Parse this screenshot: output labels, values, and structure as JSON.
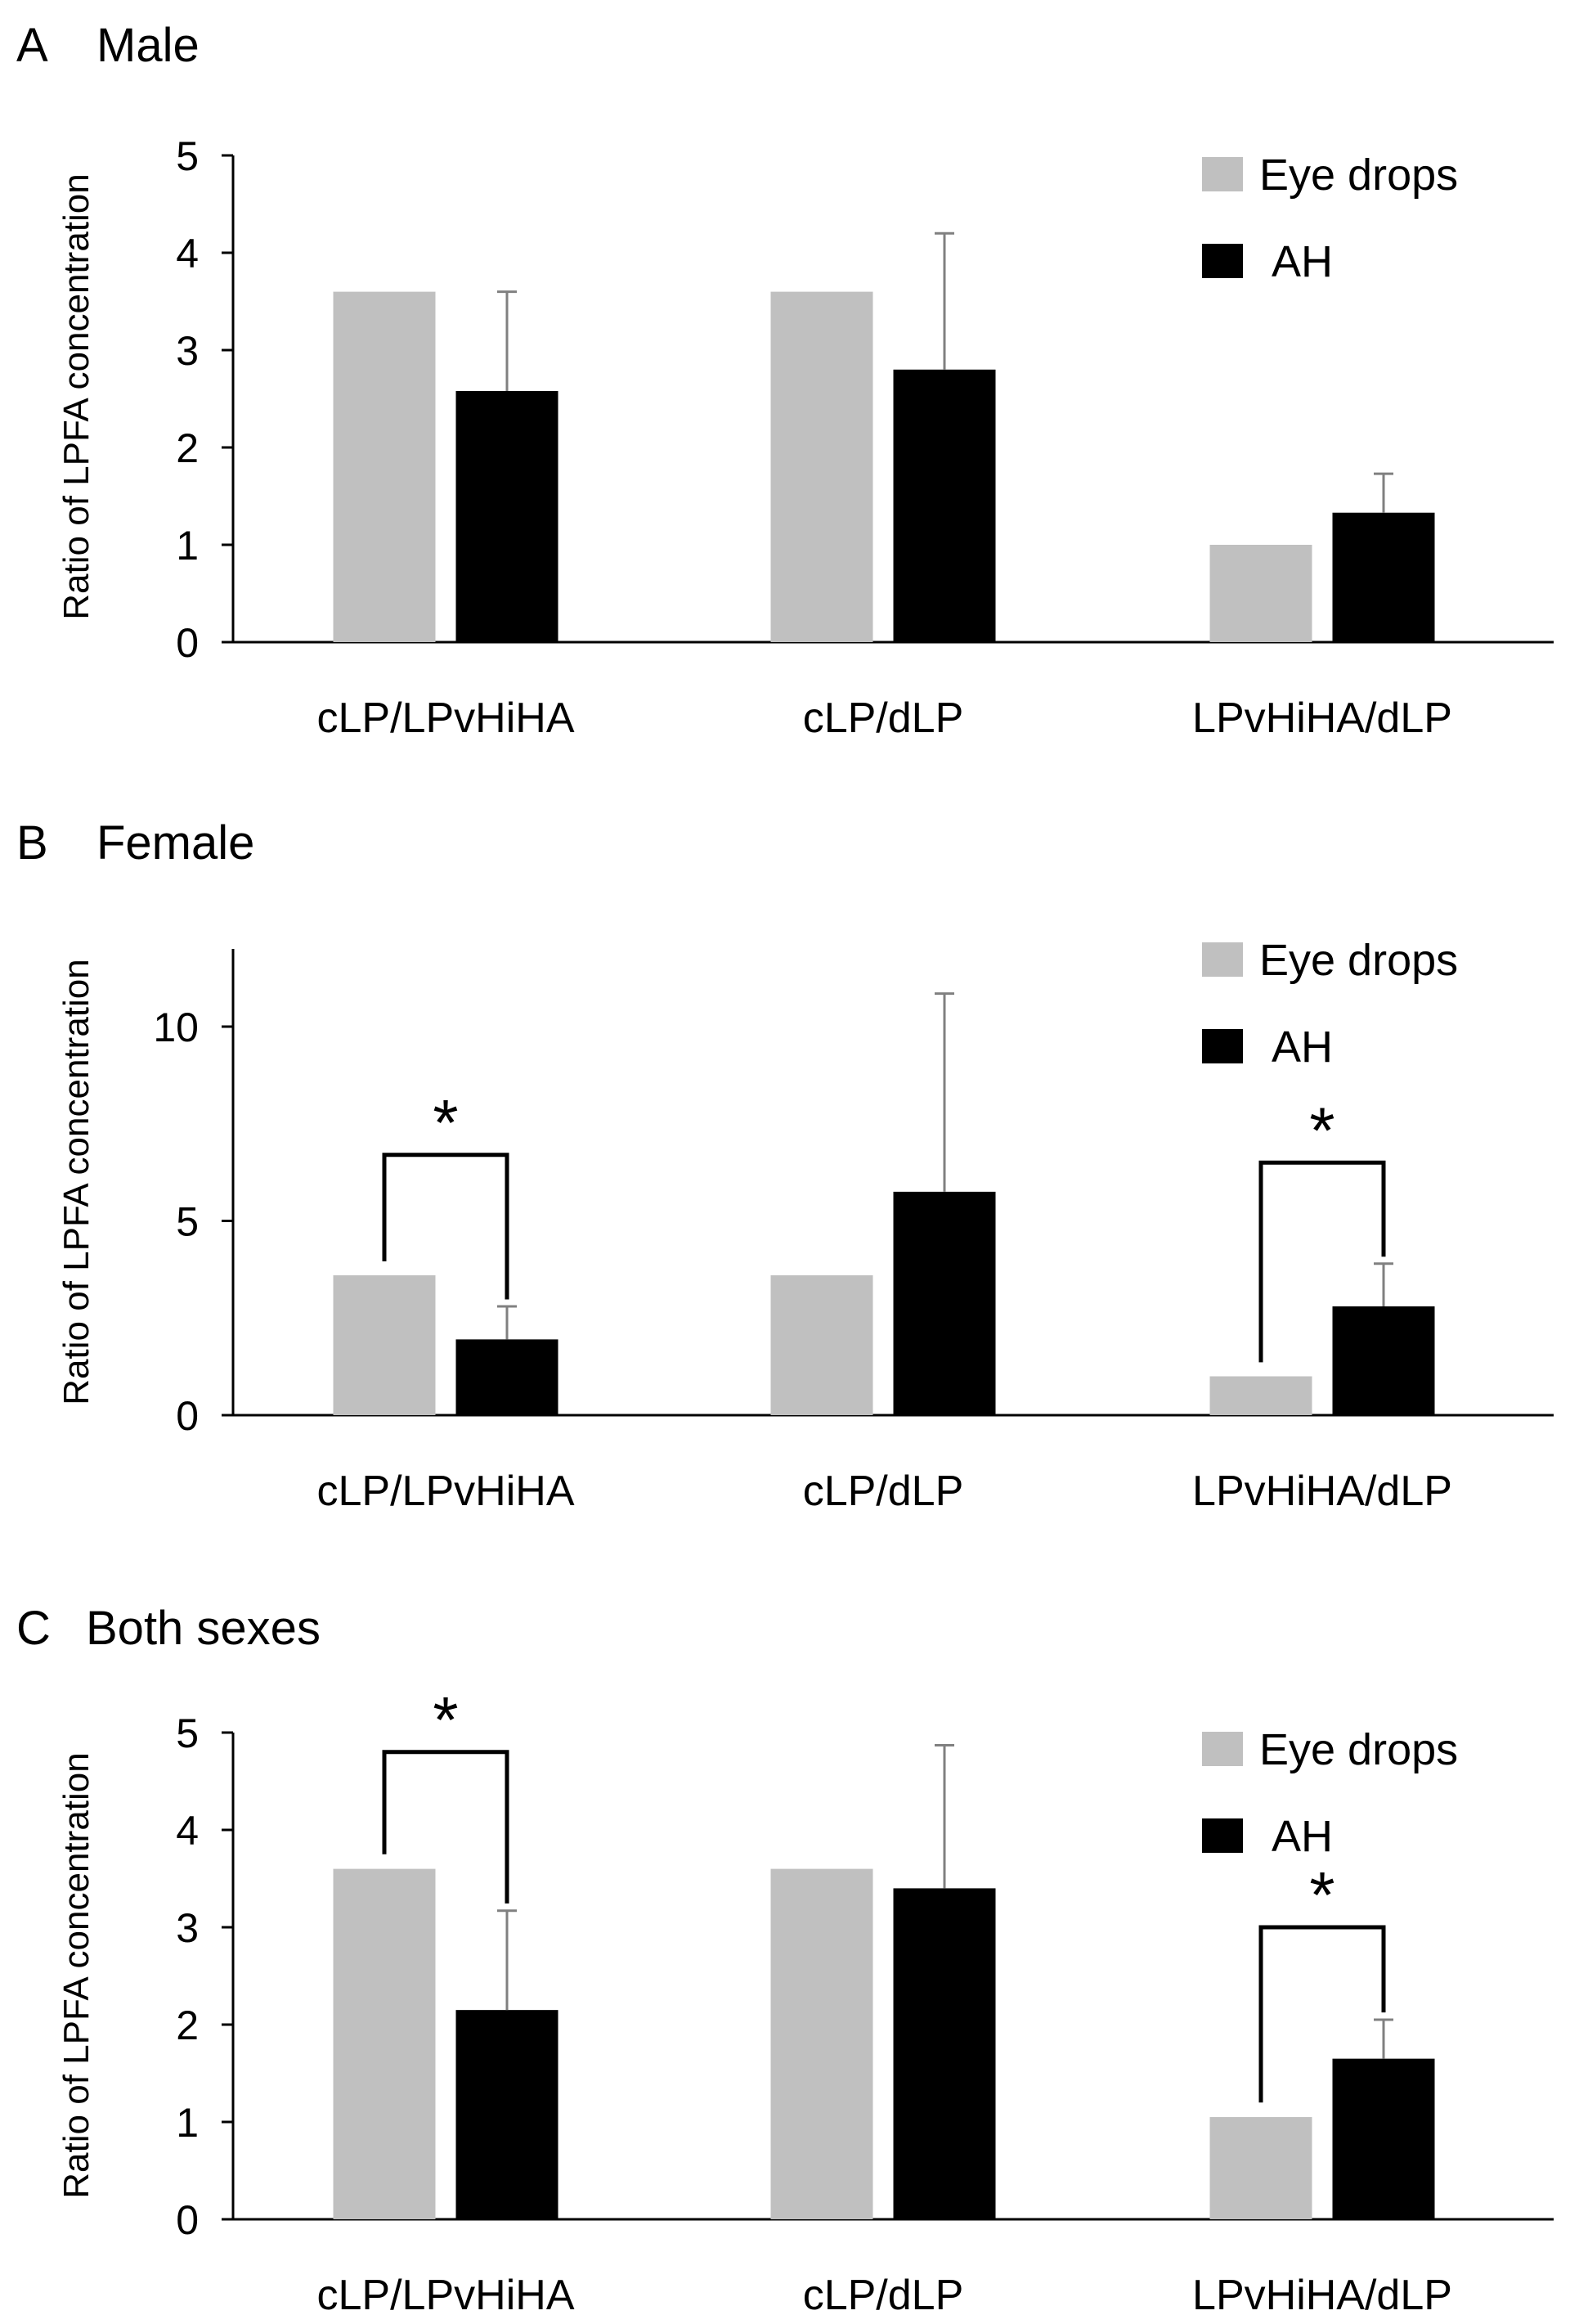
{
  "figure": {
    "colors": {
      "eye_drops": "#c0c0c0",
      "ah": "#000000",
      "error_bar": "#808080",
      "axis": "#000000"
    }
  },
  "chart_data": [
    {
      "type": "bar",
      "panel_letter": "A",
      "title": "Male",
      "ylabel": "Ratio of LPFA concentration",
      "xlabel": "",
      "ylim": [
        0,
        5
      ],
      "yticks": [
        "0",
        "1",
        "2",
        "3",
        "4",
        "5"
      ],
      "categories": [
        "cLP/LPvHiHA",
        "cLP/dLP",
        "LPvHiHA/dLP"
      ],
      "legend": {
        "position": "top-right",
        "entries": [
          "Eye drops",
          "AH"
        ]
      },
      "series": [
        {
          "name": "Eye drops",
          "values": [
            3.6,
            3.6,
            1.0
          ],
          "errors": [
            0,
            0,
            0
          ]
        },
        {
          "name": "AH",
          "values": [
            2.58,
            2.8,
            1.33
          ],
          "errors": [
            1.02,
            1.4,
            0.4
          ]
        }
      ],
      "significance": []
    },
    {
      "type": "bar",
      "panel_letter": "B",
      "title": "Female",
      "ylabel": "Ratio of LPFA concentration",
      "xlabel": "",
      "ylim": [
        0,
        12
      ],
      "yticks": [
        "0",
        "5",
        "10"
      ],
      "categories": [
        "cLP/LPvHiHA",
        "cLP/dLP",
        "LPvHiHA/dLP"
      ],
      "legend": {
        "position": "top-right",
        "entries": [
          "Eye drops",
          "AH"
        ]
      },
      "series": [
        {
          "name": "Eye drops",
          "values": [
            3.6,
            3.6,
            1.0
          ],
          "errors": [
            0,
            0,
            0
          ]
        },
        {
          "name": "AH",
          "values": [
            1.95,
            5.75,
            2.8
          ],
          "errors": [
            0.85,
            5.1,
            1.1
          ]
        }
      ],
      "significance": [
        {
          "category_index": 0,
          "label": "*",
          "bracket_top": 6.7
        },
        {
          "category_index": 2,
          "label": "*",
          "bracket_top": 6.5
        }
      ]
    },
    {
      "type": "bar",
      "panel_letter": "C",
      "title": "Both sexes",
      "ylabel": "Ratio of LPFA concentration",
      "xlabel": "",
      "ylim": [
        0,
        5
      ],
      "yticks": [
        "0",
        "1",
        "2",
        "3",
        "4",
        "5"
      ],
      "categories": [
        "cLP/LPvHiHA",
        "cLP/dLP",
        "LPvHiHA/dLP"
      ],
      "legend": {
        "position": "top-right",
        "entries": [
          "Eye drops",
          "AH"
        ]
      },
      "series": [
        {
          "name": "Eye drops",
          "values": [
            3.6,
            3.6,
            1.05
          ],
          "errors": [
            0,
            0,
            0
          ]
        },
        {
          "name": "AH",
          "values": [
            2.15,
            3.4,
            1.65
          ],
          "errors": [
            1.02,
            1.47,
            0.4
          ]
        }
      ],
      "significance": [
        {
          "category_index": 0,
          "label": "*",
          "bracket_top": 4.8
        },
        {
          "category_index": 2,
          "label": "*",
          "bracket_top": 3.0
        }
      ]
    }
  ]
}
